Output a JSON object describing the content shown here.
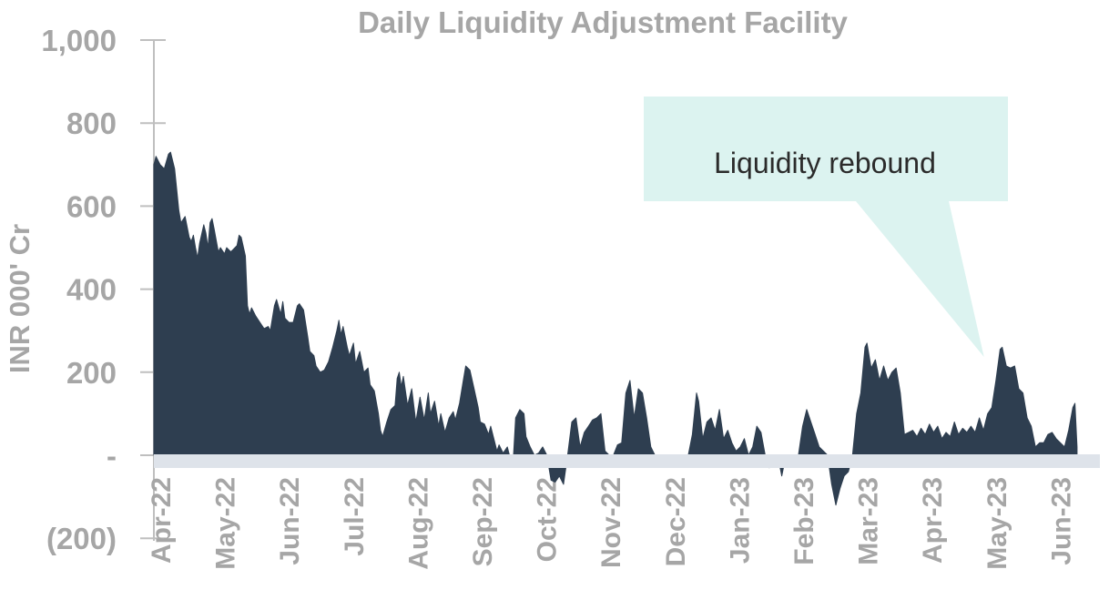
{
  "chart_data": {
    "type": "area",
    "title": "Daily Liquidity Adjustment Facility",
    "xlabel": "",
    "ylabel": "INR 000' Cr",
    "ylim": [
      -200,
      1000
    ],
    "yticks": [
      1000,
      800,
      600,
      400,
      200,
      0,
      -200
    ],
    "ytick_labels": [
      "1,000",
      "800",
      "600",
      "400",
      "200",
      "-",
      "(200)"
    ],
    "x_range": [
      "2022-04-01",
      "2023-06-30"
    ],
    "x_tick_labels": [
      "Apr-22",
      "May-22",
      "Jun-22",
      "Jul-22",
      "Aug-22",
      "Sep-22",
      "Oct-22",
      "Nov-22",
      "Dec-22",
      "Jan-23",
      "Feb-23",
      "Mar-23",
      "Apr-23",
      "May-23",
      "Jun-23"
    ],
    "grid": false,
    "series_color": "#2e3e50",
    "zero_band_color": "#dee3ea",
    "points": [
      [
        "2022-04-01",
        700
      ],
      [
        "2022-04-02",
        720
      ],
      [
        "2022-04-04",
        700
      ],
      [
        "2022-04-06",
        690
      ],
      [
        "2022-04-08",
        725
      ],
      [
        "2022-04-09",
        730
      ],
      [
        "2022-04-11",
        690
      ],
      [
        "2022-04-12",
        640
      ],
      [
        "2022-04-13",
        590
      ],
      [
        "2022-04-14",
        560
      ],
      [
        "2022-04-16",
        575
      ],
      [
        "2022-04-18",
        525
      ],
      [
        "2022-04-19",
        515
      ],
      [
        "2022-04-20",
        530
      ],
      [
        "2022-04-21",
        500
      ],
      [
        "2022-04-22",
        475
      ],
      [
        "2022-04-23",
        510
      ],
      [
        "2022-04-25",
        555
      ],
      [
        "2022-04-26",
        535
      ],
      [
        "2022-04-27",
        500
      ],
      [
        "2022-04-28",
        560
      ],
      [
        "2022-04-29",
        570
      ],
      [
        "2022-04-30",
        545
      ],
      [
        "2022-05-02",
        490
      ],
      [
        "2022-05-03",
        500
      ],
      [
        "2022-05-05",
        485
      ],
      [
        "2022-05-06",
        500
      ],
      [
        "2022-05-08",
        490
      ],
      [
        "2022-05-09",
        495
      ],
      [
        "2022-05-11",
        505
      ],
      [
        "2022-05-12",
        530
      ],
      [
        "2022-05-13",
        525
      ],
      [
        "2022-05-15",
        480
      ],
      [
        "2022-05-16",
        360
      ],
      [
        "2022-05-17",
        340
      ],
      [
        "2022-05-18",
        355
      ],
      [
        "2022-05-20",
        335
      ],
      [
        "2022-05-22",
        320
      ],
      [
        "2022-05-24",
        305
      ],
      [
        "2022-05-26",
        310
      ],
      [
        "2022-05-27",
        300
      ],
      [
        "2022-05-29",
        360
      ],
      [
        "2022-05-30",
        375
      ],
      [
        "2022-06-01",
        340
      ],
      [
        "2022-06-02",
        370
      ],
      [
        "2022-06-03",
        330
      ],
      [
        "2022-06-05",
        320
      ],
      [
        "2022-06-07",
        320
      ],
      [
        "2022-06-09",
        360
      ],
      [
        "2022-06-10",
        365
      ],
      [
        "2022-06-12",
        350
      ],
      [
        "2022-06-14",
        285
      ],
      [
        "2022-06-15",
        250
      ],
      [
        "2022-06-17",
        240
      ],
      [
        "2022-06-18",
        215
      ],
      [
        "2022-06-20",
        200
      ],
      [
        "2022-06-22",
        205
      ],
      [
        "2022-06-24",
        225
      ],
      [
        "2022-06-26",
        260
      ],
      [
        "2022-06-28",
        300
      ],
      [
        "2022-06-29",
        325
      ],
      [
        "2022-06-30",
        290
      ],
      [
        "2022-07-01",
        310
      ],
      [
        "2022-07-03",
        260
      ],
      [
        "2022-07-04",
        240
      ],
      [
        "2022-07-06",
        270
      ],
      [
        "2022-07-07",
        220
      ],
      [
        "2022-07-09",
        250
      ],
      [
        "2022-07-11",
        200
      ],
      [
        "2022-07-13",
        210
      ],
      [
        "2022-07-14",
        170
      ],
      [
        "2022-07-16",
        155
      ],
      [
        "2022-07-18",
        100
      ],
      [
        "2022-07-19",
        60
      ],
      [
        "2022-07-20",
        45
      ],
      [
        "2022-07-22",
        80
      ],
      [
        "2022-07-24",
        110
      ],
      [
        "2022-07-26",
        120
      ],
      [
        "2022-07-27",
        185
      ],
      [
        "2022-07-28",
        200
      ],
      [
        "2022-07-29",
        165
      ],
      [
        "2022-07-30",
        190
      ],
      [
        "2022-08-01",
        120
      ],
      [
        "2022-08-03",
        160
      ],
      [
        "2022-08-05",
        80
      ],
      [
        "2022-08-07",
        140
      ],
      [
        "2022-08-09",
        85
      ],
      [
        "2022-08-11",
        150
      ],
      [
        "2022-08-12",
        100
      ],
      [
        "2022-08-14",
        130
      ],
      [
        "2022-08-16",
        70
      ],
      [
        "2022-08-17",
        100
      ],
      [
        "2022-08-19",
        55
      ],
      [
        "2022-08-21",
        90
      ],
      [
        "2022-08-23",
        105
      ],
      [
        "2022-08-24",
        85
      ],
      [
        "2022-08-26",
        125
      ],
      [
        "2022-08-28",
        185
      ],
      [
        "2022-08-29",
        215
      ],
      [
        "2022-08-31",
        205
      ],
      [
        "2022-09-02",
        160
      ],
      [
        "2022-09-04",
        115
      ],
      [
        "2022-09-05",
        80
      ],
      [
        "2022-09-07",
        75
      ],
      [
        "2022-09-09",
        50
      ],
      [
        "2022-09-10",
        70
      ],
      [
        "2022-09-12",
        30
      ],
      [
        "2022-09-13",
        10
      ],
      [
        "2022-09-14",
        25
      ],
      [
        "2022-09-16",
        5
      ],
      [
        "2022-09-18",
        20
      ],
      [
        "2022-09-19",
        0
      ],
      [
        "2022-09-21",
        0
      ],
      [
        "2022-09-22",
        90
      ],
      [
        "2022-09-24",
        110
      ],
      [
        "2022-09-26",
        100
      ],
      [
        "2022-09-27",
        45
      ],
      [
        "2022-09-29",
        20
      ],
      [
        "2022-10-01",
        0
      ],
      [
        "2022-10-03",
        5
      ],
      [
        "2022-10-05",
        20
      ],
      [
        "2022-10-07",
        0
      ],
      [
        "2022-10-09",
        -60
      ],
      [
        "2022-10-11",
        -65
      ],
      [
        "2022-10-13",
        -50
      ],
      [
        "2022-10-15",
        -70
      ],
      [
        "2022-10-17",
        0
      ],
      [
        "2022-10-19",
        80
      ],
      [
        "2022-10-21",
        90
      ],
      [
        "2022-10-23",
        20
      ],
      [
        "2022-10-25",
        55
      ],
      [
        "2022-10-27",
        70
      ],
      [
        "2022-10-29",
        85
      ],
      [
        "2022-10-31",
        90
      ],
      [
        "2022-11-02",
        100
      ],
      [
        "2022-11-04",
        10
      ],
      [
        "2022-11-06",
        0
      ],
      [
        "2022-11-08",
        0
      ],
      [
        "2022-11-10",
        25
      ],
      [
        "2022-11-12",
        30
      ],
      [
        "2022-11-14",
        150
      ],
      [
        "2022-11-16",
        180
      ],
      [
        "2022-11-18",
        90
      ],
      [
        "2022-11-20",
        160
      ],
      [
        "2022-11-22",
        150
      ],
      [
        "2022-11-24",
        90
      ],
      [
        "2022-11-26",
        20
      ],
      [
        "2022-11-28",
        0
      ],
      [
        "2022-11-30",
        0
      ],
      [
        "2022-12-02",
        0
      ],
      [
        "2022-12-04",
        -15
      ],
      [
        "2022-12-06",
        -10
      ],
      [
        "2022-12-08",
        -10
      ],
      [
        "2022-12-10",
        0
      ],
      [
        "2022-12-12",
        0
      ],
      [
        "2022-12-14",
        0
      ],
      [
        "2022-12-16",
        50
      ],
      [
        "2022-12-18",
        150
      ],
      [
        "2022-12-19",
        130
      ],
      [
        "2022-12-21",
        40
      ],
      [
        "2022-12-23",
        80
      ],
      [
        "2022-12-25",
        90
      ],
      [
        "2022-12-27",
        60
      ],
      [
        "2022-12-29",
        110
      ],
      [
        "2022-12-31",
        40
      ],
      [
        "2023-01-02",
        60
      ],
      [
        "2023-01-04",
        30
      ],
      [
        "2023-01-06",
        10
      ],
      [
        "2023-01-08",
        20
      ],
      [
        "2023-01-10",
        40
      ],
      [
        "2023-01-12",
        0
      ],
      [
        "2023-01-14",
        20
      ],
      [
        "2023-01-16",
        70
      ],
      [
        "2023-01-18",
        55
      ],
      [
        "2023-01-20",
        0
      ],
      [
        "2023-01-22",
        -30
      ],
      [
        "2023-01-24",
        0
      ],
      [
        "2023-01-26",
        0
      ],
      [
        "2023-01-28",
        -50
      ],
      [
        "2023-01-30",
        0
      ],
      [
        "2023-02-01",
        0
      ],
      [
        "2023-02-03",
        0
      ],
      [
        "2023-02-05",
        0
      ],
      [
        "2023-02-07",
        70
      ],
      [
        "2023-02-09",
        110
      ],
      [
        "2023-02-11",
        80
      ],
      [
        "2023-02-13",
        50
      ],
      [
        "2023-02-15",
        20
      ],
      [
        "2023-02-17",
        10
      ],
      [
        "2023-02-19",
        0
      ],
      [
        "2023-02-21",
        -70
      ],
      [
        "2023-02-23",
        -120
      ],
      [
        "2023-02-25",
        -80
      ],
      [
        "2023-02-27",
        -50
      ],
      [
        "2023-03-01",
        -40
      ],
      [
        "2023-03-03",
        0
      ],
      [
        "2023-03-05",
        100
      ],
      [
        "2023-03-07",
        150
      ],
      [
        "2023-03-09",
        260
      ],
      [
        "2023-03-10",
        270
      ],
      [
        "2023-03-12",
        210
      ],
      [
        "2023-03-14",
        230
      ],
      [
        "2023-03-16",
        180
      ],
      [
        "2023-03-18",
        215
      ],
      [
        "2023-03-20",
        180
      ],
      [
        "2023-03-22",
        200
      ],
      [
        "2023-03-24",
        210
      ],
      [
        "2023-03-26",
        150
      ],
      [
        "2023-03-28",
        50
      ],
      [
        "2023-03-30",
        55
      ],
      [
        "2023-04-01",
        60
      ],
      [
        "2023-04-03",
        45
      ],
      [
        "2023-04-05",
        65
      ],
      [
        "2023-04-07",
        50
      ],
      [
        "2023-04-09",
        75
      ],
      [
        "2023-04-11",
        55
      ],
      [
        "2023-04-13",
        70
      ],
      [
        "2023-04-15",
        40
      ],
      [
        "2023-04-17",
        55
      ],
      [
        "2023-04-19",
        45
      ],
      [
        "2023-04-21",
        80
      ],
      [
        "2023-04-23",
        50
      ],
      [
        "2023-04-25",
        65
      ],
      [
        "2023-04-27",
        55
      ],
      [
        "2023-04-29",
        70
      ],
      [
        "2023-05-01",
        55
      ],
      [
        "2023-05-03",
        90
      ],
      [
        "2023-05-05",
        60
      ],
      [
        "2023-05-07",
        100
      ],
      [
        "2023-05-09",
        115
      ],
      [
        "2023-05-11",
        180
      ],
      [
        "2023-05-13",
        255
      ],
      [
        "2023-05-14",
        260
      ],
      [
        "2023-05-16",
        215
      ],
      [
        "2023-05-18",
        210
      ],
      [
        "2023-05-20",
        215
      ],
      [
        "2023-05-22",
        160
      ],
      [
        "2023-05-24",
        150
      ],
      [
        "2023-05-26",
        90
      ],
      [
        "2023-05-28",
        70
      ],
      [
        "2023-05-30",
        20
      ],
      [
        "2023-06-01",
        30
      ],
      [
        "2023-06-03",
        30
      ],
      [
        "2023-06-05",
        50
      ],
      [
        "2023-06-07",
        55
      ],
      [
        "2023-06-09",
        40
      ],
      [
        "2023-06-11",
        30
      ],
      [
        "2023-06-13",
        20
      ],
      [
        "2023-06-15",
        60
      ],
      [
        "2023-06-17",
        115
      ],
      [
        "2023-06-18",
        125
      ],
      [
        "2023-06-19",
        20
      ]
    ],
    "annotations": [
      {
        "text": "Liquidity rebound",
        "points_to": "2023-05-14",
        "box_color": "#dcf3f0"
      }
    ]
  }
}
